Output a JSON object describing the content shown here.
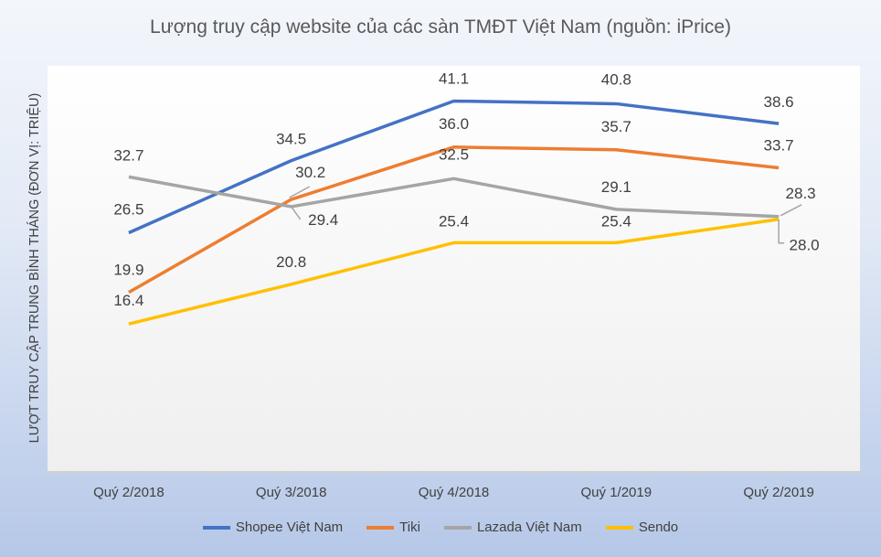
{
  "chart_data": {
    "type": "line",
    "title": "Lượng truy cập website của các sàn TMĐT Việt Nam (nguồn: iPrice)",
    "xlabel": "",
    "ylabel": "LƯỢT TRUY CẬP TRUNG BÌNH THÁNG (ĐƠN VỊ: TRIỆU)",
    "categories": [
      "Quý 2/2018",
      "Quý 3/2018",
      "Quý 4/2018",
      "Quý 1/2019",
      "Quý 2/2019"
    ],
    "ylim": [
      0,
      45
    ],
    "grid": false,
    "legend": "bottom",
    "series": [
      {
        "name": "Shopee Việt Nam",
        "color": "#4472c4",
        "values": [
          26.5,
          34.5,
          41.1,
          40.8,
          38.6
        ]
      },
      {
        "name": "Tiki",
        "color": "#ed7d31",
        "values": [
          19.9,
          30.2,
          36.0,
          35.7,
          33.7
        ]
      },
      {
        "name": "Lazada Việt Nam",
        "color": "#a5a5a5",
        "values": [
          32.7,
          29.4,
          32.5,
          29.1,
          28.3
        ]
      },
      {
        "name": "Sendo",
        "color": "#ffc000",
        "values": [
          16.4,
          20.8,
          25.4,
          25.4,
          28.0
        ]
      }
    ]
  }
}
